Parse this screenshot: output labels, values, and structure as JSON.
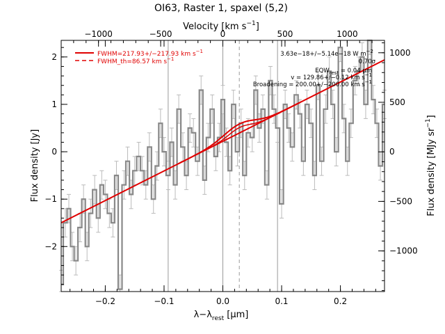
{
  "chart_data": {
    "type": "line",
    "title": "OI63, Raster 1, spaxel (5,2)",
    "xlabel": "λ−λ",
    "xlabel_sub": "rest",
    "xlabel_unit": " [μm]",
    "ylabel": "Flux density [Jy]",
    "x2label": "Velocity [km s",
    "x2label_sup": "−1",
    "x2label_end": "]",
    "y2label": "Flux density [MJy sr",
    "y2label_sup": "−1",
    "y2label_end": "]",
    "xlim": [
      -0.275,
      0.275
    ],
    "ylim": [
      -2.95,
      2.35
    ],
    "x_ticks": [
      -0.2,
      -0.1,
      0.0,
      0.1,
      0.2
    ],
    "x_tick_labels": [
      "−0.2",
      "−0.1",
      "0.0",
      "0.1",
      "0.2"
    ],
    "y_ticks": [
      -2,
      -1,
      0,
      1,
      2
    ],
    "y_tick_labels": [
      "−2",
      "−1",
      "0",
      "1",
      "2"
    ],
    "velocity_ticks": [
      -1000,
      -500,
      0,
      500,
      1000
    ],
    "velocity_tick_labels": [
      "−1000",
      "−500",
      "0",
      "500",
      "1000"
    ],
    "velocity_lim": [
      -1300,
      1300
    ],
    "sb_ticks": [
      -1000,
      -500,
      0,
      500,
      1000
    ],
    "sb_tick_labels": [
      "−1000",
      "−500",
      "0",
      "500",
      "1000"
    ],
    "sb_lim": [
      -1410,
      1125
    ],
    "grid": false,
    "vertical_lines": [
      -0.093,
      0.0,
      0.093
    ],
    "vertical_dashed_line": 0.028,
    "legend_position": "top-left",
    "legend": [
      {
        "label": "FWHM=217.93+/−217.93 km s",
        "sup": "−1",
        "style": "solid"
      },
      {
        "label": "FWHM_th=86.57 km s",
        "sup": "−1",
        "style": "dashed"
      }
    ],
    "annotations": {
      "flux": "3.63e−18+/−5.14e−18 W m",
      "flux_sup": "−2",
      "snr": "0.70σ",
      "eqw": "EQW",
      "eqw_sub": "rest",
      "eqw_value": "= 0.04 μm",
      "velocity": "v = 129.86+/−0.12 km s",
      "velocity_sup": "−1",
      "broadening": "Broadening = 200.00+/−200.00 km s",
      "broadening_sup": "−1"
    },
    "colors": {
      "spectrum": "#888888",
      "fit": "#e00000",
      "errorbar": "#bbbbbb",
      "reference_line": "#999999"
    },
    "spectrum": {
      "x": [
        -0.275,
        -0.268,
        -0.262,
        -0.256,
        -0.25,
        -0.243,
        -0.237,
        -0.231,
        -0.225,
        -0.218,
        -0.212,
        -0.206,
        -0.2,
        -0.193,
        -0.187,
        -0.181,
        -0.175,
        -0.168,
        -0.162,
        -0.156,
        -0.15,
        -0.143,
        -0.137,
        -0.131,
        -0.125,
        -0.118,
        -0.112,
        -0.106,
        -0.1,
        -0.093,
        -0.087,
        -0.081,
        -0.075,
        -0.068,
        -0.062,
        -0.056,
        -0.05,
        -0.043,
        -0.037,
        -0.031,
        -0.025,
        -0.018,
        -0.012,
        -0.006,
        0.0,
        0.006,
        0.012,
        0.018,
        0.025,
        0.031,
        0.037,
        0.043,
        0.05,
        0.056,
        0.062,
        0.068,
        0.075,
        0.081,
        0.087,
        0.093,
        0.1,
        0.106,
        0.112,
        0.118,
        0.125,
        0.131,
        0.137,
        0.143,
        0.15,
        0.156,
        0.162,
        0.168,
        0.175,
        0.181,
        0.187,
        0.193,
        0.2,
        0.206,
        0.212,
        0.218,
        0.225,
        0.231,
        0.237,
        0.243,
        0.25,
        0.256,
        0.262,
        0.268,
        0.275
      ],
      "y": [
        -2.8,
        -1.5,
        -1.2,
        -2.0,
        -2.3,
        -1.6,
        -1.0,
        -2.0,
        -1.3,
        -0.8,
        -1.4,
        -0.7,
        -0.9,
        -1.3,
        -1.5,
        -0.5,
        -2.9,
        -0.7,
        -0.2,
        -0.9,
        -0.4,
        -0.1,
        -0.4,
        -0.7,
        0.1,
        -1.0,
        -0.3,
        0.6,
        0.0,
        -0.5,
        0.2,
        -0.7,
        0.9,
        0.1,
        -0.5,
        0.5,
        0.4,
        -0.2,
        1.3,
        -0.6,
        0.3,
        0.9,
        -0.1,
        0.3,
        1.1,
        0.2,
        -0.4,
        1.0,
        0.0,
        0.6,
        -0.5,
        0.4,
        0.3,
        1.3,
        0.5,
        0.9,
        -0.7,
        1.5,
        0.9,
        0.5,
        -1.1,
        1.0,
        0.5,
        0.1,
        1.2,
        0.8,
        -0.2,
        1.0,
        0.6,
        -0.5,
        1.4,
        -0.2,
        0.9,
        1.7,
        1.0,
        0.0,
        2.2,
        0.7,
        -0.2,
        0.6,
        1.5,
        1.7,
        2.0,
        1.0,
        2.35,
        1.1,
        0.6,
        -0.3,
        1.0
      ],
      "err": 0.3
    },
    "fit_line": {
      "slope": 6.25,
      "intercept": 0.22
    },
    "line_gaussian": {
      "center": 0.028,
      "amplitude": 0.19,
      "sigma": 0.026
    }
  }
}
